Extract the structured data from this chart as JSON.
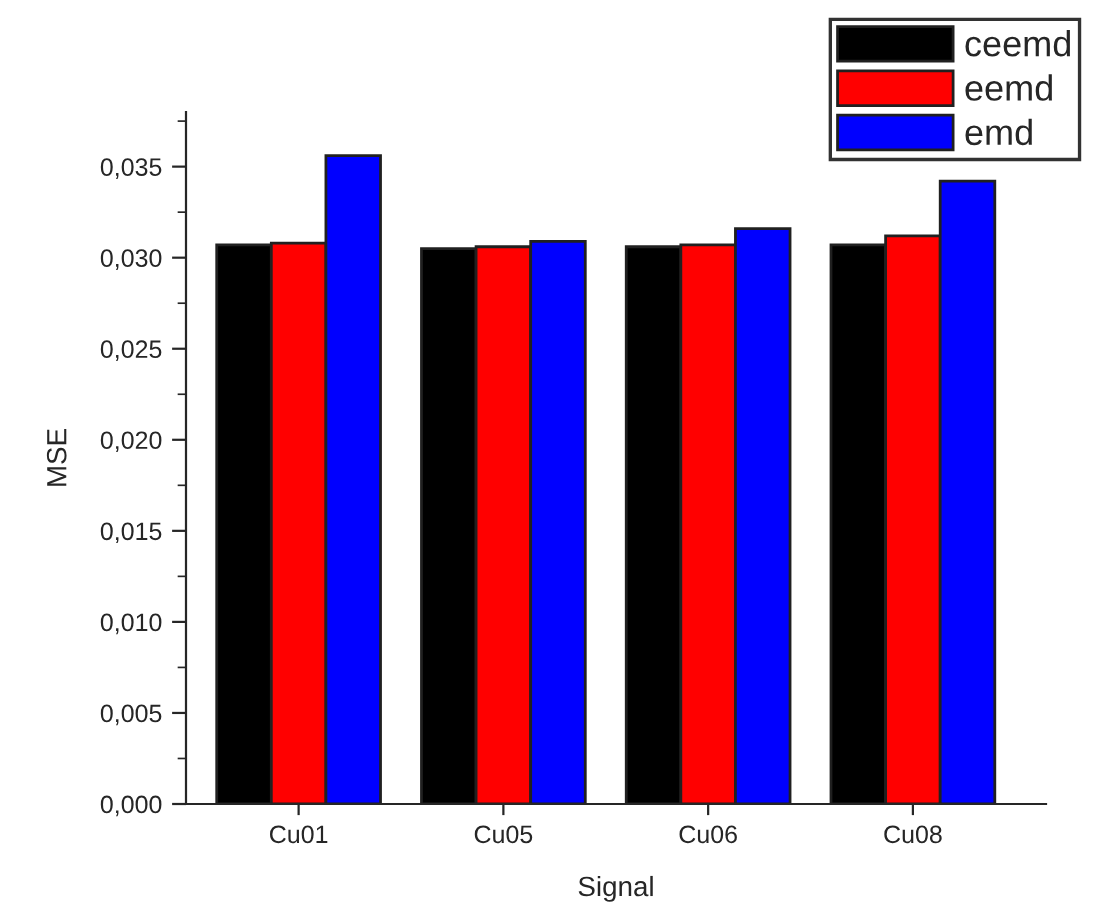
{
  "chart_data": {
    "type": "bar",
    "xlabel": "Signal",
    "ylabel": "MSE",
    "categories": [
      "Cu01",
      "Cu05",
      "Cu06",
      "Cu08"
    ],
    "series": [
      {
        "name": "ceemd",
        "color": "#000000",
        "values": [
          0.0307,
          0.0305,
          0.0306,
          0.0307
        ]
      },
      {
        "name": "eemd",
        "color": "#ff0000",
        "values": [
          0.0308,
          0.0306,
          0.0307,
          0.0312
        ]
      },
      {
        "name": "emd",
        "color": "#0000ff",
        "values": [
          0.0356,
          0.0309,
          0.0316,
          0.0342
        ]
      }
    ],
    "ylim": [
      0,
      0.038
    ],
    "yticks": [
      {
        "value": 0,
        "label": "0,000"
      },
      {
        "value": 0.0025,
        "label": null
      },
      {
        "value": 0.005,
        "label": "0,005"
      },
      {
        "value": 0.0075,
        "label": null
      },
      {
        "value": 0.01,
        "label": "0,010"
      },
      {
        "value": 0.0125,
        "label": null
      },
      {
        "value": 0.015,
        "label": "0,015"
      },
      {
        "value": 0.0175,
        "label": null
      },
      {
        "value": 0.02,
        "label": "0,020"
      },
      {
        "value": 0.0225,
        "label": null
      },
      {
        "value": 0.025,
        "label": "0,025"
      },
      {
        "value": 0.0275,
        "label": null
      },
      {
        "value": 0.03,
        "label": "0,030"
      },
      {
        "value": 0.0325,
        "label": null
      },
      {
        "value": 0.035,
        "label": "0,035"
      },
      {
        "value": 0.0375,
        "label": null
      }
    ],
    "grid": false,
    "legend": "top right"
  }
}
